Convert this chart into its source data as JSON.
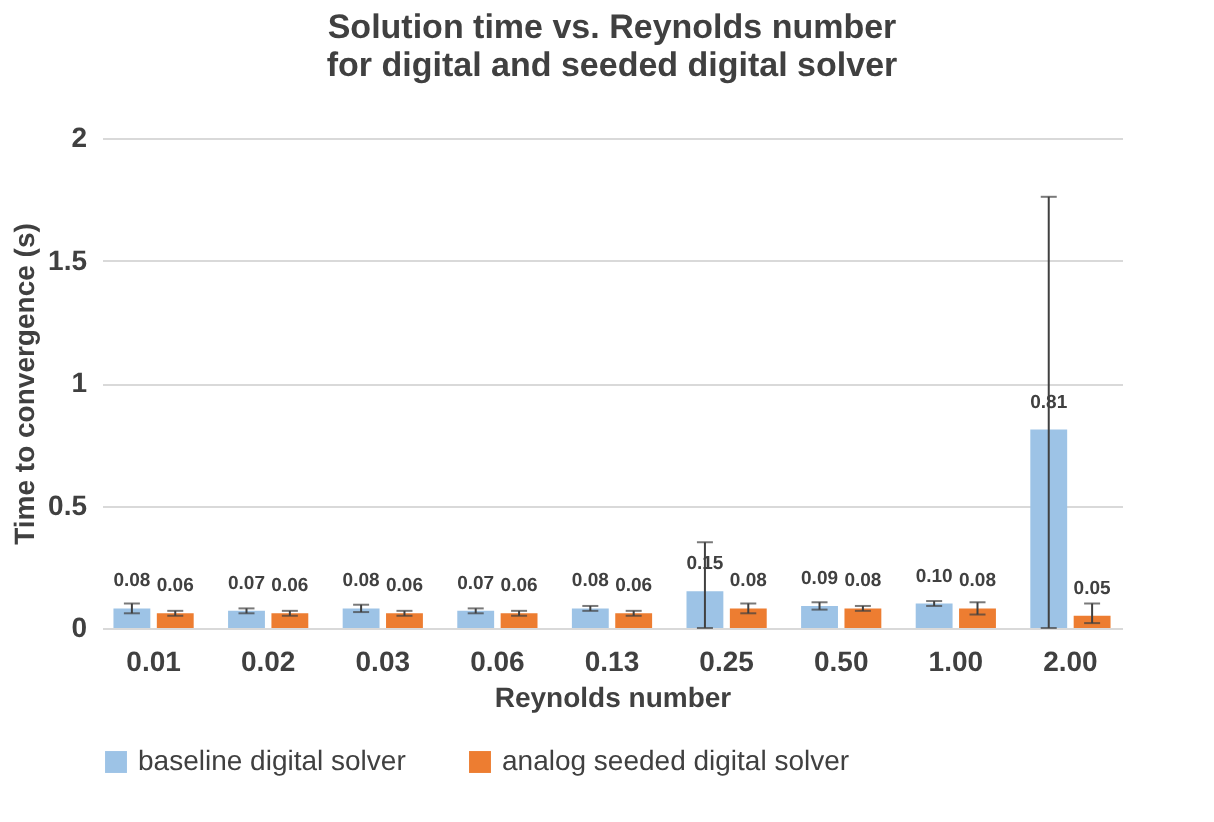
{
  "chart_data": {
    "type": "bar",
    "title": "Solution time vs. Reynolds number\nfor digital and seeded digital solver",
    "xlabel": "Reynolds number",
    "ylabel": "Time to convergence (s)",
    "categories": [
      "0.01",
      "0.02",
      "0.03",
      "0.06",
      "0.13",
      "0.25",
      "0.50",
      "1.00",
      "2.00"
    ],
    "series": [
      {
        "name": "baseline digital solver",
        "color": "#9dc3e6",
        "values": [
          0.08,
          0.07,
          0.08,
          0.07,
          0.08,
          0.15,
          0.09,
          0.1,
          0.81
        ],
        "errors": [
          0.02,
          0.01,
          0.015,
          0.01,
          0.01,
          [
            0,
            0.35
          ],
          0.015,
          0.01,
          [
            0,
            1.76
          ]
        ],
        "value_labels": [
          "0.08",
          "0.07",
          "0.08",
          "0.07",
          "0.08",
          "0.15",
          "0.09",
          "0.10",
          "0.81"
        ]
      },
      {
        "name": "analog seeded digital solver",
        "color": "#ed7d31",
        "values": [
          0.06,
          0.06,
          0.06,
          0.06,
          0.06,
          0.08,
          0.08,
          0.08,
          0.05
        ],
        "errors": [
          0.01,
          0.01,
          0.01,
          0.01,
          0.01,
          0.02,
          0.01,
          0.025,
          [
            0.02,
            0.1
          ]
        ],
        "value_labels": [
          "0.06",
          "0.06",
          "0.06",
          "0.06",
          "0.06",
          "0.08",
          "0.08",
          "0.08",
          "0.05"
        ]
      }
    ],
    "ylim": [
      0,
      2
    ],
    "yticks": [
      0,
      0.5,
      1,
      1.5,
      2
    ],
    "grid": "y",
    "legend": "bottom"
  }
}
